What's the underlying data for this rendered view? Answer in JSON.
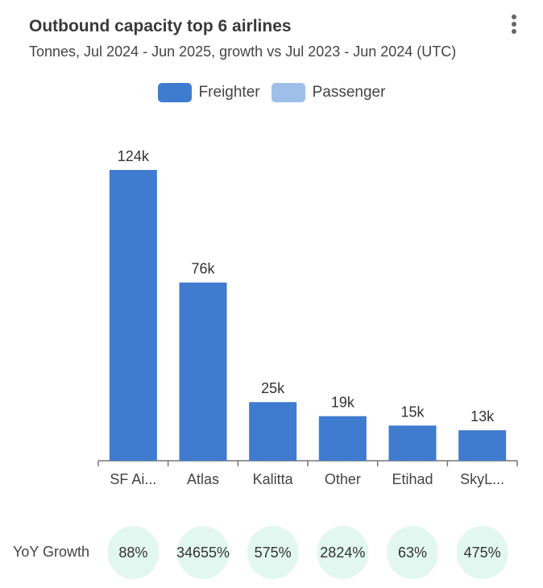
{
  "header": {
    "title": "Outbound capacity top 6 airlines",
    "subtitle": "Tonnes, Jul 2024 - Jun 2025, growth vs Jul 2023 - Jun 2024 (UTC)",
    "menu_icon": "more-vert-icon"
  },
  "colors": {
    "freighter": "#3f7bcf",
    "passenger": "#9dbfe8",
    "growth_bg": "#e3f7f1",
    "axis": "#777"
  },
  "chart_data": {
    "type": "bar",
    "title": "Outbound capacity top 6 airlines",
    "subtitle": "Tonnes, Jul 2024 - Jun 2025, growth vs Jul 2023 - Jun 2024 (UTC)",
    "categories": [
      "SF Ai...",
      "Atlas",
      "Kalitta",
      "Other",
      "Etihad",
      "SkyL..."
    ],
    "series": [
      {
        "name": "Freighter",
        "values": [
          124,
          76,
          25,
          19,
          15,
          13
        ]
      },
      {
        "name": "Passenger",
        "values": [
          0,
          0,
          0,
          0,
          0,
          0
        ]
      }
    ],
    "data_labels": [
      "124k",
      "76k",
      "25k",
      "19k",
      "15k",
      "13k"
    ],
    "unit": "k tonnes",
    "ylim": [
      0,
      124
    ],
    "grid": false,
    "legend": [
      "Freighter",
      "Passenger"
    ],
    "legend_position": "top-center",
    "yoy_label": "YoY Growth",
    "yoy_growth": [
      "88%",
      "34655%",
      "575%",
      "2824%",
      "63%",
      "475%"
    ]
  }
}
